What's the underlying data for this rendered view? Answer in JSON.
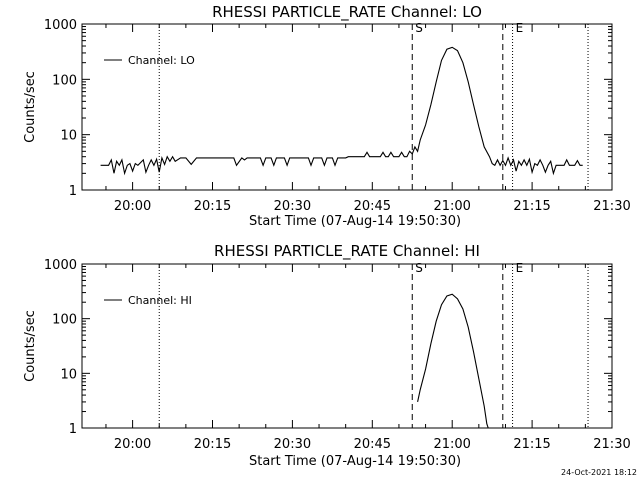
{
  "footer_timestamp": "24-Oct-2021 18:12",
  "chart_data": [
    {
      "type": "line",
      "title": "RHESSI PARTICLE_RATE Channel: LO",
      "xlabel": "Start Time (07-Aug-14 19:50:30)",
      "ylabel": "Counts/sec",
      "yscale": "log",
      "xlim": [
        "19:50:30",
        "21:30:00"
      ],
      "ylim": [
        1,
        1000
      ],
      "x_ticks": [
        "20:00",
        "20:15",
        "20:30",
        "20:45",
        "21:00",
        "21:15",
        "21:30"
      ],
      "y_ticks": [
        "1",
        "10",
        "100",
        "1000"
      ],
      "legend": {
        "placement": "top-left",
        "entries": [
          "Channel: LO"
        ]
      },
      "markers": [
        {
          "label": "",
          "time": "20:05:00",
          "style": "dotted"
        },
        {
          "label": "S",
          "time": "20:52:30",
          "style": "dashed"
        },
        {
          "label": "",
          "time": "21:09:30",
          "style": "dashed"
        },
        {
          "label": "E",
          "time": "21:11:20",
          "style": "dotted"
        },
        {
          "label": "",
          "time": "21:25:30",
          "style": "dotted"
        }
      ],
      "series": [
        {
          "points": [
            [
              "19:54:00",
              2.8
            ],
            [
              "19:55:30",
              2.8
            ],
            [
              "19:56:00",
              3.5
            ],
            [
              "19:56:30",
              2.0
            ],
            [
              "19:57:00",
              3.3
            ],
            [
              "19:57:30",
              2.8
            ],
            [
              "19:58:00",
              3.5
            ],
            [
              "19:58:30",
              2.0
            ],
            [
              "19:59:00",
              2.8
            ],
            [
              "19:59:30",
              3.0
            ],
            [
              "20:00:00",
              2.2
            ],
            [
              "20:00:30",
              3.0
            ],
            [
              "20:01:00",
              2.8
            ],
            [
              "20:02:00",
              3.5
            ],
            [
              "20:02:30",
              2.1
            ],
            [
              "20:03:00",
              2.8
            ],
            [
              "20:03:30",
              3.5
            ],
            [
              "20:04:00",
              2.8
            ],
            [
              "20:04:30",
              3.6
            ],
            [
              "20:05:00",
              2.1
            ],
            [
              "20:05:30",
              3.8
            ],
            [
              "20:06:00",
              2.9
            ],
            [
              "20:06:30",
              4.0
            ],
            [
              "20:07:00",
              3.3
            ],
            [
              "20:07:30",
              4.0
            ],
            [
              "20:08:00",
              3.3
            ],
            [
              "20:09:00",
              3.8
            ],
            [
              "20:10:00",
              3.8
            ],
            [
              "20:11:00",
              2.9
            ],
            [
              "20:12:00",
              3.8
            ],
            [
              "20:19:00",
              3.8
            ],
            [
              "20:19:30",
              2.8
            ],
            [
              "20:20:30",
              3.8
            ],
            [
              "20:21:00",
              3.5
            ],
            [
              "20:21:30",
              3.8
            ],
            [
              "20:24:00",
              3.8
            ],
            [
              "20:24:30",
              2.8
            ],
            [
              "20:25:00",
              3.8
            ],
            [
              "20:26:00",
              3.8
            ],
            [
              "20:26:30",
              2.8
            ],
            [
              "20:27:00",
              3.8
            ],
            [
              "20:28:30",
              3.8
            ],
            [
              "20:29:00",
              2.8
            ],
            [
              "20:29:30",
              3.8
            ],
            [
              "20:33:00",
              3.8
            ],
            [
              "20:33:30",
              2.8
            ],
            [
              "20:34:00",
              3.8
            ],
            [
              "20:35:30",
              3.8
            ],
            [
              "20:36:00",
              2.8
            ],
            [
              "20:36:30",
              3.8
            ],
            [
              "20:37:30",
              3.8
            ],
            [
              "20:38:00",
              2.8
            ],
            [
              "20:38:30",
              3.8
            ],
            [
              "20:40:00",
              3.8
            ],
            [
              "20:40:30",
              4.0
            ],
            [
              "20:43:30",
              4.0
            ],
            [
              "20:44:00",
              4.8
            ],
            [
              "20:44:30",
              4.0
            ],
            [
              "20:46:30",
              4.0
            ],
            [
              "20:47:00",
              4.8
            ],
            [
              "20:47:30",
              4.0
            ],
            [
              "20:48:00",
              4.0
            ],
            [
              "20:48:30",
              4.8
            ],
            [
              "20:49:00",
              4.0
            ],
            [
              "20:50:00",
              4.0
            ],
            [
              "20:50:30",
              4.8
            ],
            [
              "20:51:00",
              4.0
            ],
            [
              "20:51:30",
              4.0
            ],
            [
              "20:52:00",
              5.0
            ],
            [
              "20:52:30",
              4.5
            ],
            [
              "20:53:00",
              6.0
            ],
            [
              "20:53:30",
              5.0
            ],
            [
              "20:54:00",
              8.0
            ],
            [
              "20:55:00",
              15
            ],
            [
              "20:56:00",
              35
            ],
            [
              "20:57:00",
              90
            ],
            [
              "20:58:00",
              220
            ],
            [
              "20:59:00",
              350
            ],
            [
              "21:00:00",
              380
            ],
            [
              "21:01:00",
              330
            ],
            [
              "21:02:00",
              200
            ],
            [
              "21:03:00",
              90
            ],
            [
              "21:04:00",
              35
            ],
            [
              "21:05:00",
              14
            ],
            [
              "21:06:00",
              6.0
            ],
            [
              "21:07:00",
              4.0
            ],
            [
              "21:07:30",
              3.0
            ],
            [
              "21:08:00",
              2.8
            ],
            [
              "21:08:30",
              3.5
            ],
            [
              "21:09:00",
              2.8
            ],
            [
              "21:09:30",
              3.4
            ],
            [
              "21:10:00",
              2.8
            ],
            [
              "21:10:30",
              3.8
            ],
            [
              "21:11:00",
              2.8
            ],
            [
              "21:11:30",
              3.5
            ],
            [
              "21:12:00",
              2.2
            ],
            [
              "21:12:30",
              3.3
            ],
            [
              "21:13:00",
              2.8
            ],
            [
              "21:13:30",
              3.5
            ],
            [
              "21:14:00",
              2.8
            ],
            [
              "21:14:30",
              3.6
            ],
            [
              "21:15:00",
              2.1
            ],
            [
              "21:15:30",
              3.0
            ],
            [
              "21:16:00",
              2.8
            ],
            [
              "21:16:30",
              3.5
            ],
            [
              "21:17:00",
              2.8
            ],
            [
              "21:17:30",
              2.1
            ],
            [
              "21:18:00",
              2.8
            ],
            [
              "21:18:30",
              3.3
            ],
            [
              "21:19:00",
              2.0
            ],
            [
              "21:19:30",
              2.8
            ],
            [
              "21:21:00",
              2.8
            ],
            [
              "21:21:30",
              3.5
            ],
            [
              "21:22:00",
              2.8
            ],
            [
              "21:23:00",
              2.8
            ],
            [
              "21:23:30",
              3.4
            ],
            [
              "21:24:00",
              2.8
            ],
            [
              "21:24:30",
              2.8
            ]
          ]
        }
      ]
    },
    {
      "type": "line",
      "title": "RHESSI PARTICLE_RATE Channel: HI",
      "xlabel": "Start Time (07-Aug-14 19:50:30)",
      "ylabel": "Counts/sec",
      "yscale": "log",
      "xlim": [
        "19:50:30",
        "21:30:00"
      ],
      "ylim": [
        1,
        1000
      ],
      "x_ticks": [
        "20:00",
        "20:15",
        "20:30",
        "20:45",
        "21:00",
        "21:15",
        "21:30"
      ],
      "y_ticks": [
        "1",
        "10",
        "100",
        "1000"
      ],
      "legend": {
        "placement": "top-left",
        "entries": [
          "Channel: HI"
        ]
      },
      "markers": [
        {
          "label": "",
          "time": "20:05:00",
          "style": "dotted"
        },
        {
          "label": "S",
          "time": "20:52:30",
          "style": "dashed"
        },
        {
          "label": "",
          "time": "21:09:30",
          "style": "dashed"
        },
        {
          "label": "E",
          "time": "21:11:20",
          "style": "dotted"
        },
        {
          "label": "",
          "time": "21:25:30",
          "style": "dotted"
        }
      ],
      "series": [
        {
          "points": [
            [
              "20:53:30",
              3.0
            ],
            [
              "20:54:00",
              5.0
            ],
            [
              "20:55:00",
              12
            ],
            [
              "20:56:00",
              35
            ],
            [
              "20:57:00",
              90
            ],
            [
              "20:58:00",
              180
            ],
            [
              "20:59:00",
              260
            ],
            [
              "21:00:00",
              280
            ],
            [
              "21:01:00",
              230
            ],
            [
              "21:02:00",
              150
            ],
            [
              "21:03:00",
              70
            ],
            [
              "21:04:00",
              25
            ],
            [
              "21:05:00",
              8.0
            ],
            [
              "21:06:00",
              2.5
            ],
            [
              "21:06:30",
              1.2
            ],
            [
              "21:06:45",
              1.0
            ]
          ]
        }
      ]
    }
  ]
}
